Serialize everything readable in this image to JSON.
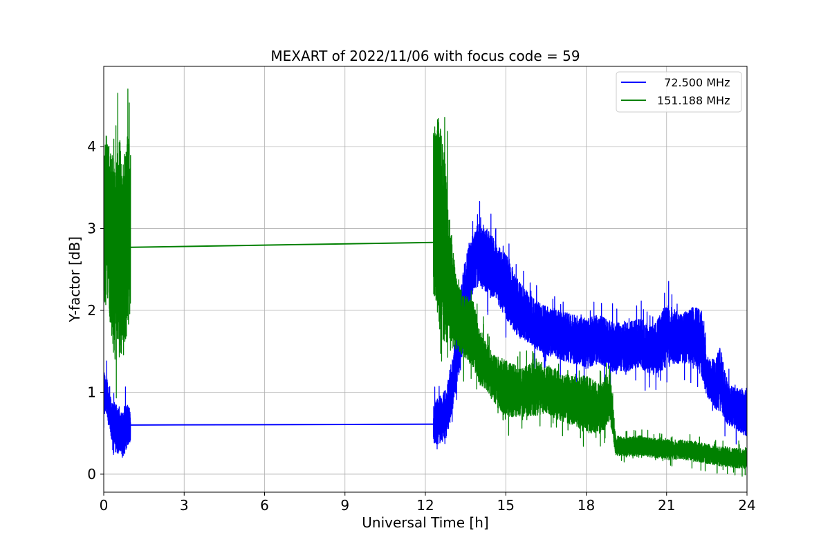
{
  "chart_data": {
    "type": "line",
    "title": "MEXART of 2022/11/06 with focus code = 59",
    "xlabel": "Universal Time [h]",
    "ylabel": "Y-factor [dB]",
    "xlim": [
      0,
      24
    ],
    "ylim": [
      -0.22,
      4.98
    ],
    "xticks": [
      0,
      3,
      6,
      9,
      12,
      15,
      18,
      21,
      24
    ],
    "yticks": [
      0,
      1,
      2,
      3,
      4
    ],
    "grid": true,
    "legend_position": "top-right",
    "series": [
      {
        "name": "  72.500 MHz",
        "color": "#0000ff",
        "segments": [
          {
            "x": [
              0.0,
              0.1,
              0.2,
              0.3,
              0.4,
              0.5,
              0.6,
              0.7,
              0.8,
              0.9,
              1.0
            ],
            "mean": [
              1.0,
              0.95,
              0.8,
              0.6,
              0.55,
              0.55,
              0.5,
              0.5,
              0.55,
              0.6,
              0.6
            ],
            "amp": [
              0.25,
              0.25,
              0.25,
              0.3,
              0.3,
              0.3,
              0.25,
              0.3,
              0.3,
              0.25,
              0.2
            ]
          },
          {
            "x": [
              1.0,
              12.3
            ],
            "mean": [
              0.6,
              0.61
            ],
            "amp": [
              0,
              0
            ]
          },
          {
            "x": [
              12.3,
              12.5,
              12.8,
              13.0,
              13.2,
              13.4,
              13.6,
              13.8,
              14.0,
              14.3,
              14.6,
              15.0,
              15.5,
              16.0,
              16.5,
              17.0,
              17.5,
              18.0,
              18.5,
              19.0,
              19.5,
              20.0,
              20.5,
              21.0,
              21.5,
              22.0,
              22.3,
              22.5,
              22.8,
              23.0,
              23.3,
              23.6,
              24.0
            ],
            "mean": [
              0.6,
              0.65,
              0.75,
              1.1,
              1.5,
              2.0,
              2.4,
              2.6,
              2.7,
              2.6,
              2.5,
              2.3,
              2.0,
              1.85,
              1.75,
              1.7,
              1.65,
              1.6,
              1.65,
              1.55,
              1.55,
              1.6,
              1.5,
              1.7,
              1.65,
              1.7,
              1.6,
              1.2,
              1.1,
              1.15,
              0.85,
              0.8,
              0.75
            ],
            "amp": [
              0.25,
              0.3,
              0.3,
              0.35,
              0.4,
              0.5,
              0.4,
              0.35,
              0.4,
              0.4,
              0.35,
              0.4,
              0.35,
              0.3,
              0.3,
              0.3,
              0.3,
              0.3,
              0.3,
              0.3,
              0.3,
              0.3,
              0.3,
              0.4,
              0.3,
              0.35,
              0.4,
              0.25,
              0.3,
              0.4,
              0.25,
              0.25,
              0.3
            ]
          }
        ]
      },
      {
        "name": "151.188 MHz",
        "color": "#008000",
        "segments": [
          {
            "x": [
              0.0,
              0.1,
              0.2,
              0.3,
              0.4,
              0.5,
              0.6,
              0.7,
              0.8,
              0.9,
              1.0
            ],
            "mean": [
              3.0,
              3.2,
              3.0,
              2.8,
              2.6,
              2.7,
              2.8,
              2.6,
              2.8,
              3.0,
              2.9
            ],
            "amp": [
              0.9,
              1.1,
              1.0,
              1.2,
              1.3,
              1.2,
              1.3,
              1.2,
              1.3,
              1.2,
              1.0
            ]
          },
          {
            "x": [
              1.0,
              12.3
            ],
            "mean": [
              2.77,
              2.83
            ],
            "amp": [
              0,
              0
            ]
          },
          {
            "x": [
              12.3,
              12.5,
              12.7,
              12.9,
              13.2,
              13.5,
              13.8,
              14.0,
              14.3,
              14.6,
              15.0,
              15.5,
              16.0,
              16.5,
              17.0,
              17.5,
              18.0,
              18.5,
              18.9,
              19.1,
              19.5,
              20.0,
              20.5,
              21.0,
              21.5,
              22.0,
              22.5,
              23.0,
              23.5,
              24.0
            ],
            "mean": [
              3.2,
              3.1,
              2.8,
              2.4,
              1.9,
              1.8,
              1.7,
              1.45,
              1.3,
              1.15,
              1.05,
              1.0,
              1.05,
              1.05,
              0.95,
              0.9,
              0.85,
              0.8,
              0.95,
              0.35,
              0.33,
              0.35,
              0.32,
              0.3,
              0.3,
              0.28,
              0.25,
              0.22,
              0.2,
              0.18
            ],
            "amp": [
              1.0,
              1.3,
              1.2,
              0.8,
              0.4,
              0.4,
              0.4,
              0.35,
              0.3,
              0.3,
              0.35,
              0.3,
              0.35,
              0.3,
              0.3,
              0.3,
              0.35,
              0.3,
              0.3,
              0.12,
              0.12,
              0.12,
              0.12,
              0.12,
              0.12,
              0.12,
              0.12,
              0.12,
              0.12,
              0.12
            ]
          }
        ]
      }
    ]
  }
}
